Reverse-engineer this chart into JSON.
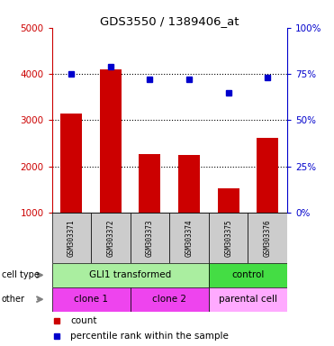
{
  "title": "GDS3550 / 1389406_at",
  "samples": [
    "GSM303371",
    "GSM303372",
    "GSM303373",
    "GSM303374",
    "GSM303375",
    "GSM303376"
  ],
  "counts": [
    3150,
    4100,
    2270,
    2250,
    1530,
    2620
  ],
  "percentiles": [
    75,
    79,
    72,
    72,
    65,
    73
  ],
  "ylim_left": [
    1000,
    5000
  ],
  "ylim_right": [
    0,
    100
  ],
  "bar_color": "#cc0000",
  "dot_color": "#0000cc",
  "cell_type_labels": [
    {
      "text": "GLI1 transformed",
      "start": 0,
      "end": 4,
      "color": "#aaeea0"
    },
    {
      "text": "control",
      "start": 4,
      "end": 6,
      "color": "#44dd44"
    }
  ],
  "other_labels": [
    {
      "text": "clone 1",
      "start": 0,
      "end": 2,
      "color": "#ee44ee"
    },
    {
      "text": "clone 2",
      "start": 2,
      "end": 4,
      "color": "#ee44ee"
    },
    {
      "text": "parental cell",
      "start": 4,
      "end": 6,
      "color": "#ffaaff"
    }
  ],
  "cell_type_row_label": "cell type",
  "other_row_label": "other",
  "legend_count_label": "count",
  "legend_percentile_label": "percentile rank within the sample",
  "left_yticks": [
    1000,
    2000,
    3000,
    4000,
    5000
  ],
  "right_yticks": [
    0,
    25,
    50,
    75,
    100
  ],
  "dotted_lines": [
    2000,
    3000,
    4000
  ],
  "background_color": "#ffffff",
  "sample_box_color": "#cccccc",
  "bar_width": 0.55
}
